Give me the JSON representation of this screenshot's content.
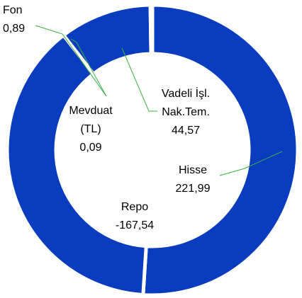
{
  "chart_data": {
    "type": "donut",
    "categories": [
      "Hisse",
      "Repo",
      "Vadeli İşl. Nak.Tem.",
      "Fon",
      "Mevduat (TL)"
    ],
    "values": [
      221.99,
      -167.54,
      44.57,
      0.89,
      0.09
    ],
    "value_labels": [
      "221,99",
      "-167,54",
      "44,57",
      "0,89",
      "0,09"
    ],
    "color": "#0a3cbf"
  }
}
